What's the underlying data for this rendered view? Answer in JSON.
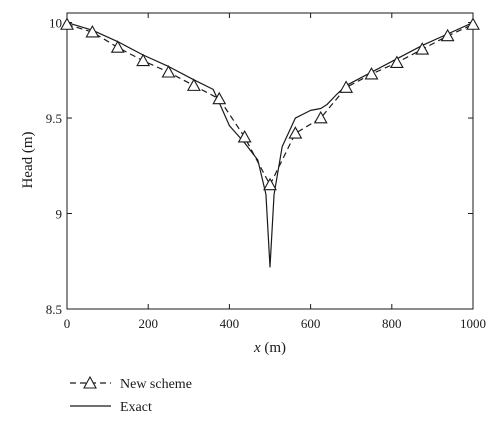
{
  "chart_data": {
    "type": "line",
    "xlabel_var": "x",
    "xlabel_unit": " (m)",
    "ylabel": "Head (m)",
    "xlim": [
      0,
      1000
    ],
    "ylim": [
      8.5,
      10.0
    ],
    "xticks": [
      "0",
      "200",
      "400",
      "600",
      "800",
      "1000"
    ],
    "yticks": [
      "8.5",
      "9",
      "9.5",
      "10"
    ],
    "grid": false,
    "legend_position": "below-left",
    "series": [
      {
        "name": "New scheme",
        "style": "dashed-triangle",
        "x": [
          0,
          62.5,
          125,
          187.5,
          250,
          312.5,
          375,
          437.5,
          500,
          562.5,
          625,
          687.5,
          750,
          812.5,
          875,
          937.5,
          1000
        ],
        "y": [
          9.99,
          9.95,
          9.87,
          9.8,
          9.74,
          9.67,
          9.6,
          9.4,
          9.15,
          9.42,
          9.5,
          9.66,
          9.73,
          9.79,
          9.86,
          9.93,
          9.99
        ]
      },
      {
        "name": "Exact",
        "style": "solid",
        "x": [
          0,
          62.5,
          125,
          187.5,
          250,
          312.5,
          360,
          375,
          400,
          437.5,
          470,
          490,
          500,
          510,
          530,
          562.5,
          600,
          625,
          640,
          662.5,
          687.5,
          750,
          812.5,
          875,
          937.5,
          1000
        ],
        "y": [
          10.0,
          9.96,
          9.9,
          9.83,
          9.77,
          9.7,
          9.65,
          9.58,
          9.46,
          9.37,
          9.28,
          9.1,
          8.72,
          9.1,
          9.35,
          9.5,
          9.54,
          9.55,
          9.57,
          9.62,
          9.67,
          9.74,
          9.81,
          9.88,
          9.94,
          10.0
        ]
      }
    ]
  },
  "colors": {
    "line": "#1a1a1a",
    "background": "#ffffff"
  }
}
